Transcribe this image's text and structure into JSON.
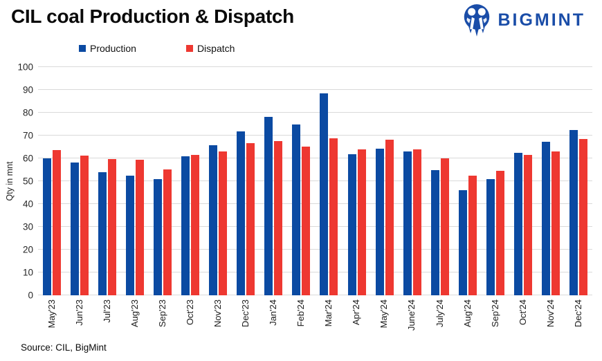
{
  "header": {
    "title": "CIL coal Production & Dispatch",
    "logo_text": "BIGMINT",
    "logo_color": "#1a4da8"
  },
  "footer": {
    "source": "Source: CIL, BigMint"
  },
  "chart_data": {
    "type": "bar",
    "title": "CIL coal Production & Dispatch",
    "xlabel": "",
    "ylabel": "Qty in mnt",
    "ylim": [
      0,
      100
    ],
    "ytick_step": 10,
    "grid": true,
    "gridline_color": "#d9d9d9",
    "legend_position": "top",
    "categories": [
      "May'23",
      "Jun'23",
      "Jul'23",
      "Aug'23",
      "Sep'23",
      "Oct'23",
      "Nov'23",
      "Dec'23",
      "Jan'24",
      "Feb'24",
      "Mar'24",
      "Apr'24",
      "May'24",
      "June'24",
      "July'24",
      "Aug'24",
      "Sep'24",
      "Oct'24",
      "Nov'24",
      "Dec'24"
    ],
    "series": [
      {
        "name": "Production",
        "color": "#0b4aa2",
        "values": [
          60.0,
          58.1,
          53.8,
          52.3,
          51.0,
          61.0,
          65.9,
          71.7,
          78.3,
          74.8,
          88.6,
          61.8,
          64.2,
          63.0,
          54.9,
          46.2,
          51.0,
          62.5,
          67.2,
          72.4
        ]
      },
      {
        "name": "Dispatch",
        "color": "#ee3831",
        "values": [
          63.6,
          61.3,
          59.6,
          59.3,
          55.1,
          61.6,
          63.0,
          66.7,
          67.6,
          65.2,
          68.7,
          64.0,
          68.1,
          63.9,
          59.9,
          52.3,
          54.5,
          61.6,
          63.0,
          68.5
        ]
      }
    ]
  }
}
